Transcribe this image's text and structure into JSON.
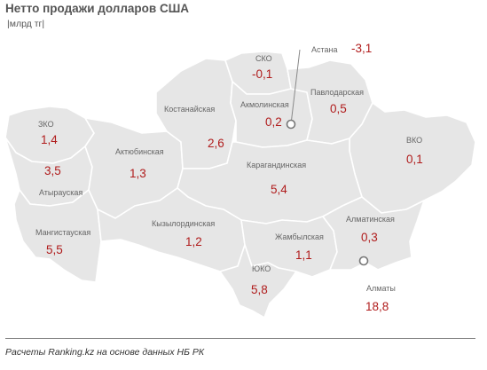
{
  "title": "Нетто продажи долларов США",
  "unit": "|млрд тг|",
  "source": "Расчеты Ranking.kz на основе данных НБ РК",
  "colors": {
    "land": "#e6e6e6",
    "border": "#ffffff",
    "value": "#b01c1c",
    "label": "#666666",
    "city_marker": "#888888"
  },
  "regions": [
    {
      "id": "zko",
      "name": "ЗКО",
      "value": "1,4"
    },
    {
      "id": "atyrau",
      "name": "Атырауская",
      "value": "3,5"
    },
    {
      "id": "mangistau",
      "name": "Мангистауская",
      "value": "5,5"
    },
    {
      "id": "aktobe",
      "name": "Актюбинская",
      "value": "1,3"
    },
    {
      "id": "kostanay",
      "name": "Костанайская",
      "value": "2,6"
    },
    {
      "id": "sko",
      "name": "СКО",
      "value": "-0,1"
    },
    {
      "id": "akmola",
      "name": "Акмолинская",
      "value": "0,2"
    },
    {
      "id": "pavlodar",
      "name": "Павлодарская",
      "value": "0,5"
    },
    {
      "id": "vko",
      "name": "ВКО",
      "value": "0,1"
    },
    {
      "id": "karaganda",
      "name": "Карагандинская",
      "value": "5,4"
    },
    {
      "id": "kyzylorda",
      "name": "Кызылординская",
      "value": "1,2"
    },
    {
      "id": "zhambyl",
      "name": "Жамбылская",
      "value": "1,1"
    },
    {
      "id": "almaty-obl",
      "name": "Алматинская",
      "value": "0,3"
    },
    {
      "id": "uko",
      "name": "ЮКО",
      "value": "5,8"
    }
  ],
  "cities": [
    {
      "id": "astana",
      "name": "Астана",
      "value": "-3,1"
    },
    {
      "id": "almaty",
      "name": "Алматы",
      "value": "18,8"
    }
  ]
}
